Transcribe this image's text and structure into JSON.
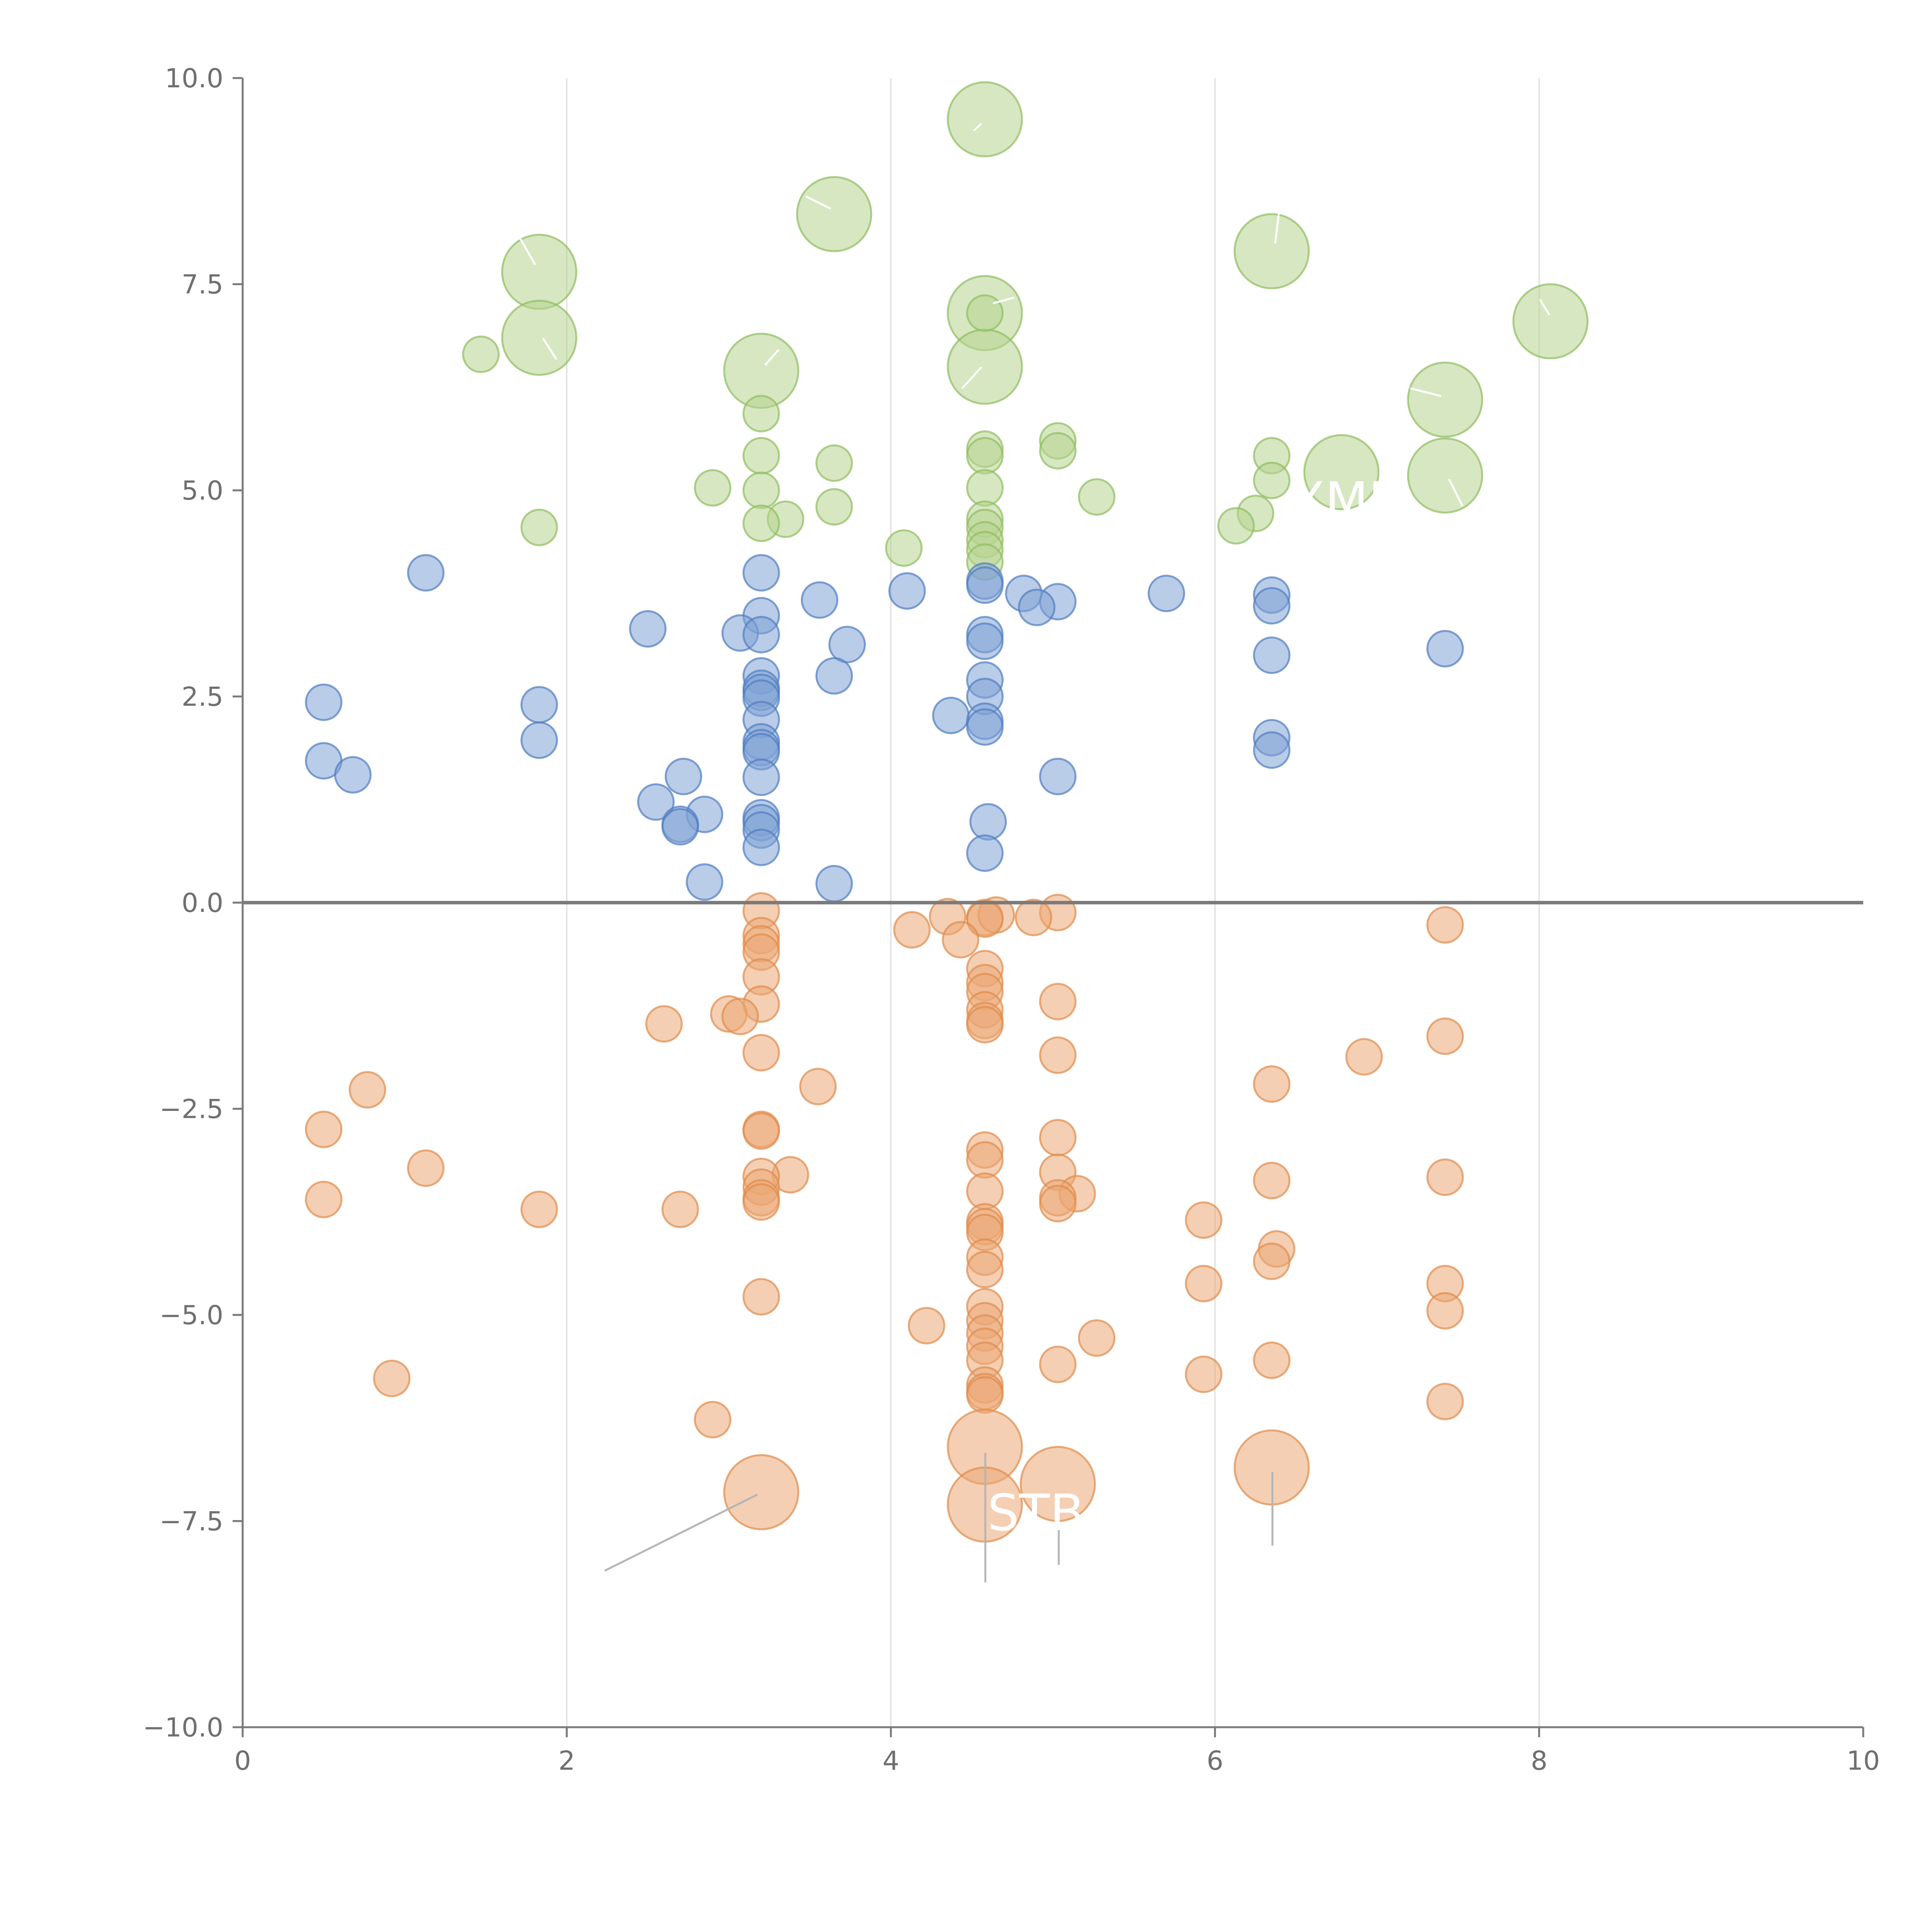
{
  "colors": {
    "blue": "#7fa3d6",
    "blue_stroke": "#4f7cc0",
    "green": "#b6d48f",
    "green_stroke": "#8ebc5e",
    "orange": "#eba875",
    "orange_stroke": "#df8a4a",
    "axis": "#7a7a7a",
    "grid": "#dcdcdc"
  },
  "chart_data": {
    "type": "scatter",
    "title": "",
    "xlabel": "",
    "ylabel": "",
    "xlim": [
      0,
      10
    ],
    "ylim": [
      -10,
      10
    ],
    "x_ticks": [
      "0",
      "2",
      "4",
      "6",
      "8",
      "10"
    ],
    "y_ticks": [
      "10.0",
      "7.5",
      "5.0",
      "2.5",
      "0.0",
      "−2.5",
      "−5.0",
      "−7.5",
      "−10.0"
    ],
    "vertical_grid_at": [
      2,
      4,
      6,
      8
    ],
    "zero_line_y": 0,
    "series": [
      {
        "name": "green-large",
        "color_key": "green",
        "size": "large",
        "points": [
          [
            4.58,
            9.5
          ],
          [
            3.65,
            8.35
          ],
          [
            1.83,
            7.65
          ],
          [
            6.35,
            7.9
          ],
          [
            4.58,
            7.15
          ],
          [
            8.07,
            7.05
          ],
          [
            1.83,
            6.85
          ],
          [
            3.2,
            6.45
          ],
          [
            4.58,
            6.5
          ],
          [
            7.42,
            6.1
          ],
          [
            6.78,
            5.22
          ],
          [
            7.42,
            5.18
          ]
        ]
      },
      {
        "name": "green-small",
        "color_key": "green",
        "size": "small",
        "points": [
          [
            1.47,
            6.65
          ],
          [
            4.58,
            7.15
          ],
          [
            3.2,
            5.93
          ],
          [
            3.2,
            5.42
          ],
          [
            4.58,
            5.5
          ],
          [
            4.58,
            5.42
          ],
          [
            5.03,
            5.6
          ],
          [
            5.03,
            5.48
          ],
          [
            6.35,
            5.42
          ],
          [
            3.65,
            5.33
          ],
          [
            6.35,
            5.12
          ],
          [
            2.9,
            5.03
          ],
          [
            3.2,
            5.0
          ],
          [
            4.58,
            5.03
          ],
          [
            5.27,
            4.92
          ],
          [
            3.65,
            4.8
          ],
          [
            6.25,
            4.72
          ],
          [
            3.35,
            4.65
          ],
          [
            3.2,
            4.6
          ],
          [
            4.58,
            4.65
          ],
          [
            4.58,
            4.55
          ],
          [
            6.13,
            4.57
          ],
          [
            1.83,
            4.55
          ],
          [
            4.58,
            4.4
          ],
          [
            4.08,
            4.3
          ],
          [
            4.58,
            4.28
          ],
          [
            4.58,
            4.13
          ]
        ]
      },
      {
        "name": "blue",
        "color_key": "blue",
        "size": "small",
        "points": [
          [
            1.13,
            4.0
          ],
          [
            3.2,
            4.0
          ],
          [
            4.58,
            3.9
          ],
          [
            4.58,
            3.85
          ],
          [
            4.1,
            3.78
          ],
          [
            5.7,
            3.75
          ],
          [
            4.82,
            3.75
          ],
          [
            6.35,
            3.73
          ],
          [
            3.56,
            3.67
          ],
          [
            5.03,
            3.65
          ],
          [
            4.9,
            3.58
          ],
          [
            6.35,
            3.6
          ],
          [
            3.2,
            3.48
          ],
          [
            2.5,
            3.32
          ],
          [
            3.07,
            3.27
          ],
          [
            3.2,
            3.25
          ],
          [
            4.58,
            3.25
          ],
          [
            4.58,
            3.17
          ],
          [
            3.73,
            3.13
          ],
          [
            7.42,
            3.08
          ],
          [
            6.35,
            3.0
          ],
          [
            3.2,
            2.75
          ],
          [
            3.65,
            2.75
          ],
          [
            4.58,
            2.7
          ],
          [
            3.2,
            2.6
          ],
          [
            3.2,
            2.55
          ],
          [
            3.2,
            2.48
          ],
          [
            4.58,
            2.5
          ],
          [
            0.5,
            2.43
          ],
          [
            1.83,
            2.4
          ],
          [
            4.37,
            2.27
          ],
          [
            3.2,
            2.22
          ],
          [
            4.58,
            2.2
          ],
          [
            4.58,
            2.13
          ],
          [
            6.35,
            2.0
          ],
          [
            1.83,
            1.97
          ],
          [
            3.2,
            1.95
          ],
          [
            3.2,
            1.88
          ],
          [
            3.2,
            1.83
          ],
          [
            6.35,
            1.85
          ],
          [
            0.5,
            1.72
          ],
          [
            0.68,
            1.55
          ],
          [
            2.72,
            1.53
          ],
          [
            3.2,
            1.52
          ],
          [
            5.03,
            1.53
          ],
          [
            2.55,
            1.22
          ],
          [
            2.85,
            1.07
          ],
          [
            3.2,
            1.03
          ],
          [
            3.2,
            0.97
          ],
          [
            4.6,
            0.98
          ],
          [
            2.7,
            0.95
          ],
          [
            2.7,
            0.92
          ],
          [
            3.2,
            0.88
          ],
          [
            3.2,
            0.67
          ],
          [
            4.58,
            0.6
          ],
          [
            2.85,
            0.25
          ],
          [
            3.65,
            0.23
          ]
        ]
      },
      {
        "name": "orange-small",
        "color_key": "orange",
        "size": "small",
        "points": [
          [
            3.2,
            -0.1
          ],
          [
            5.03,
            -0.12
          ],
          [
            4.35,
            -0.17
          ],
          [
            4.58,
            -0.18
          ],
          [
            4.65,
            -0.15
          ],
          [
            4.58,
            -0.2
          ],
          [
            4.88,
            -0.18
          ],
          [
            7.42,
            -0.27
          ],
          [
            4.13,
            -0.33
          ],
          [
            3.2,
            -0.4
          ],
          [
            4.43,
            -0.45
          ],
          [
            3.2,
            -0.5
          ],
          [
            3.2,
            -0.6
          ],
          [
            4.58,
            -0.8
          ],
          [
            3.2,
            -0.9
          ],
          [
            4.58,
            -0.97
          ],
          [
            4.58,
            -1.08
          ],
          [
            5.03,
            -1.2
          ],
          [
            3.2,
            -1.23
          ],
          [
            4.58,
            -1.3
          ],
          [
            3.0,
            -1.35
          ],
          [
            3.07,
            -1.38
          ],
          [
            4.58,
            -1.43
          ],
          [
            2.6,
            -1.47
          ],
          [
            4.58,
            -1.48
          ],
          [
            7.42,
            -1.62
          ],
          [
            3.2,
            -1.82
          ],
          [
            5.03,
            -1.85
          ],
          [
            6.92,
            -1.87
          ],
          [
            6.35,
            -2.2
          ],
          [
            3.55,
            -2.23
          ],
          [
            0.77,
            -2.27
          ],
          [
            0.5,
            -2.75
          ],
          [
            3.2,
            -2.75
          ],
          [
            3.2,
            -2.77
          ],
          [
            5.03,
            -2.85
          ],
          [
            4.58,
            -3.0
          ],
          [
            4.58,
            -3.12
          ],
          [
            1.13,
            -3.22
          ],
          [
            5.03,
            -3.27
          ],
          [
            3.38,
            -3.3
          ],
          [
            3.2,
            -3.32
          ],
          [
            7.42,
            -3.33
          ],
          [
            6.35,
            -3.37
          ],
          [
            3.2,
            -3.45
          ],
          [
            4.58,
            -3.5
          ],
          [
            5.15,
            -3.53
          ],
          [
            3.2,
            -3.58
          ],
          [
            0.5,
            -3.6
          ],
          [
            3.2,
            -3.63
          ],
          [
            5.03,
            -3.58
          ],
          [
            5.03,
            -3.65
          ],
          [
            1.83,
            -3.72
          ],
          [
            2.7,
            -3.72
          ],
          [
            5.93,
            -3.85
          ],
          [
            4.58,
            -3.87
          ],
          [
            4.58,
            -3.93
          ],
          [
            4.58,
            -4.0
          ],
          [
            6.38,
            -4.2
          ],
          [
            4.58,
            -4.3
          ],
          [
            6.35,
            -4.35
          ],
          [
            4.58,
            -4.45
          ],
          [
            5.93,
            -4.62
          ],
          [
            7.42,
            -4.62
          ],
          [
            3.2,
            -4.78
          ],
          [
            4.58,
            -4.9
          ],
          [
            7.42,
            -4.95
          ],
          [
            4.58,
            -5.07
          ],
          [
            4.22,
            -5.13
          ],
          [
            4.58,
            -5.22
          ],
          [
            5.27,
            -5.28
          ],
          [
            4.58,
            -5.38
          ],
          [
            4.58,
            -5.55
          ],
          [
            6.35,
            -5.55
          ],
          [
            5.03,
            -5.6
          ],
          [
            5.93,
            -5.72
          ],
          [
            0.92,
            -5.77
          ],
          [
            4.58,
            -5.85
          ],
          [
            4.58,
            -5.93
          ],
          [
            4.58,
            -5.97
          ],
          [
            7.42,
            -6.05
          ],
          [
            2.9,
            -6.27
          ]
        ]
      },
      {
        "name": "orange-large",
        "color_key": "orange",
        "size": "large",
        "points": [
          [
            4.58,
            -6.6
          ],
          [
            6.35,
            -6.85
          ],
          [
            5.03,
            -7.05
          ],
          [
            3.2,
            -7.15
          ],
          [
            4.58,
            -7.3
          ]
        ]
      }
    ],
    "annotations": [
      {
        "text": "STB",
        "anchor_x": 5.03,
        "anchor_y": -7.38
      },
      {
        "text": "XMF",
        "anchor_x": 6.85,
        "anchor_y": 4.92
      }
    ]
  }
}
